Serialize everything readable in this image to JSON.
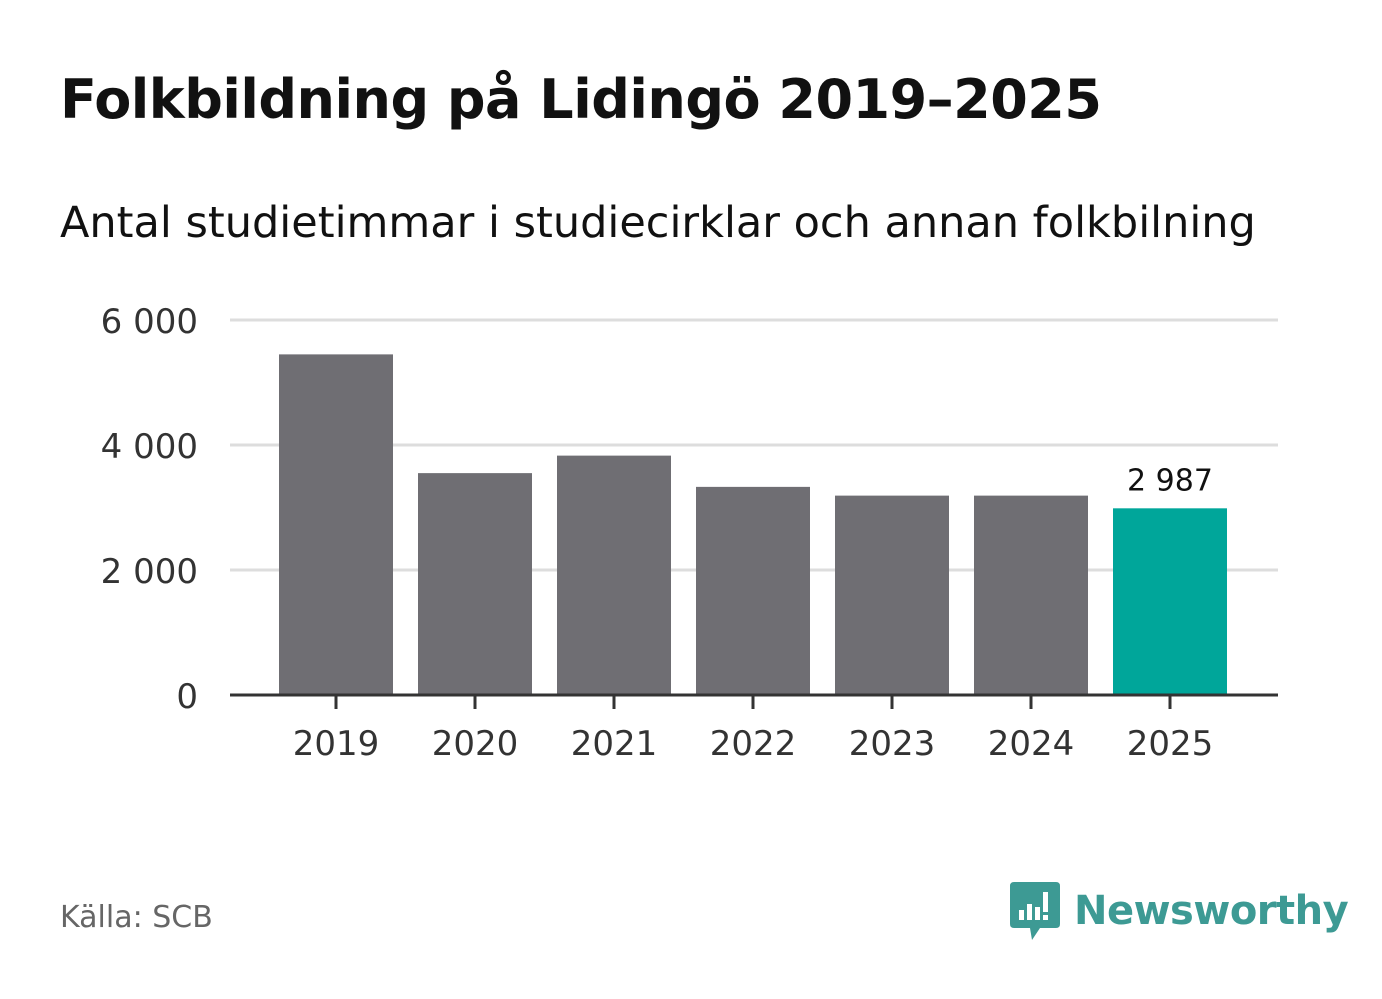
{
  "header": {
    "title": "Folkbildning på Lidingö 2019–2025",
    "subtitle": "Antal studietimmar i studiecirklar och annan folkbilning"
  },
  "footer": {
    "source": "Källa: SCB",
    "brand": "Newsworthy"
  },
  "colors": {
    "bar": "#6f6e73",
    "highlight": "#00a69a",
    "grid": "#dddddd",
    "axis": "#333333",
    "brand": "#3d9a94"
  },
  "chart_data": {
    "type": "bar",
    "title": "Folkbildning på Lidingö 2019–2025",
    "subtitle": "Antal studietimmar i studiecirklar och annan folkbilning",
    "xlabel": "",
    "ylabel": "",
    "categories": [
      "2019",
      "2020",
      "2021",
      "2022",
      "2023",
      "2024",
      "2025"
    ],
    "values": [
      5450,
      3550,
      3830,
      3330,
      3190,
      3190,
      2987
    ],
    "highlight_index": 6,
    "data_labels": [
      {
        "index": 6,
        "text": "2 987"
      }
    ],
    "ylim": [
      0,
      6000
    ],
    "yticks": [
      0,
      2000,
      4000,
      6000
    ],
    "ytick_labels": [
      "0",
      "2 000",
      "4 000",
      "6 000"
    ],
    "grid": true
  }
}
